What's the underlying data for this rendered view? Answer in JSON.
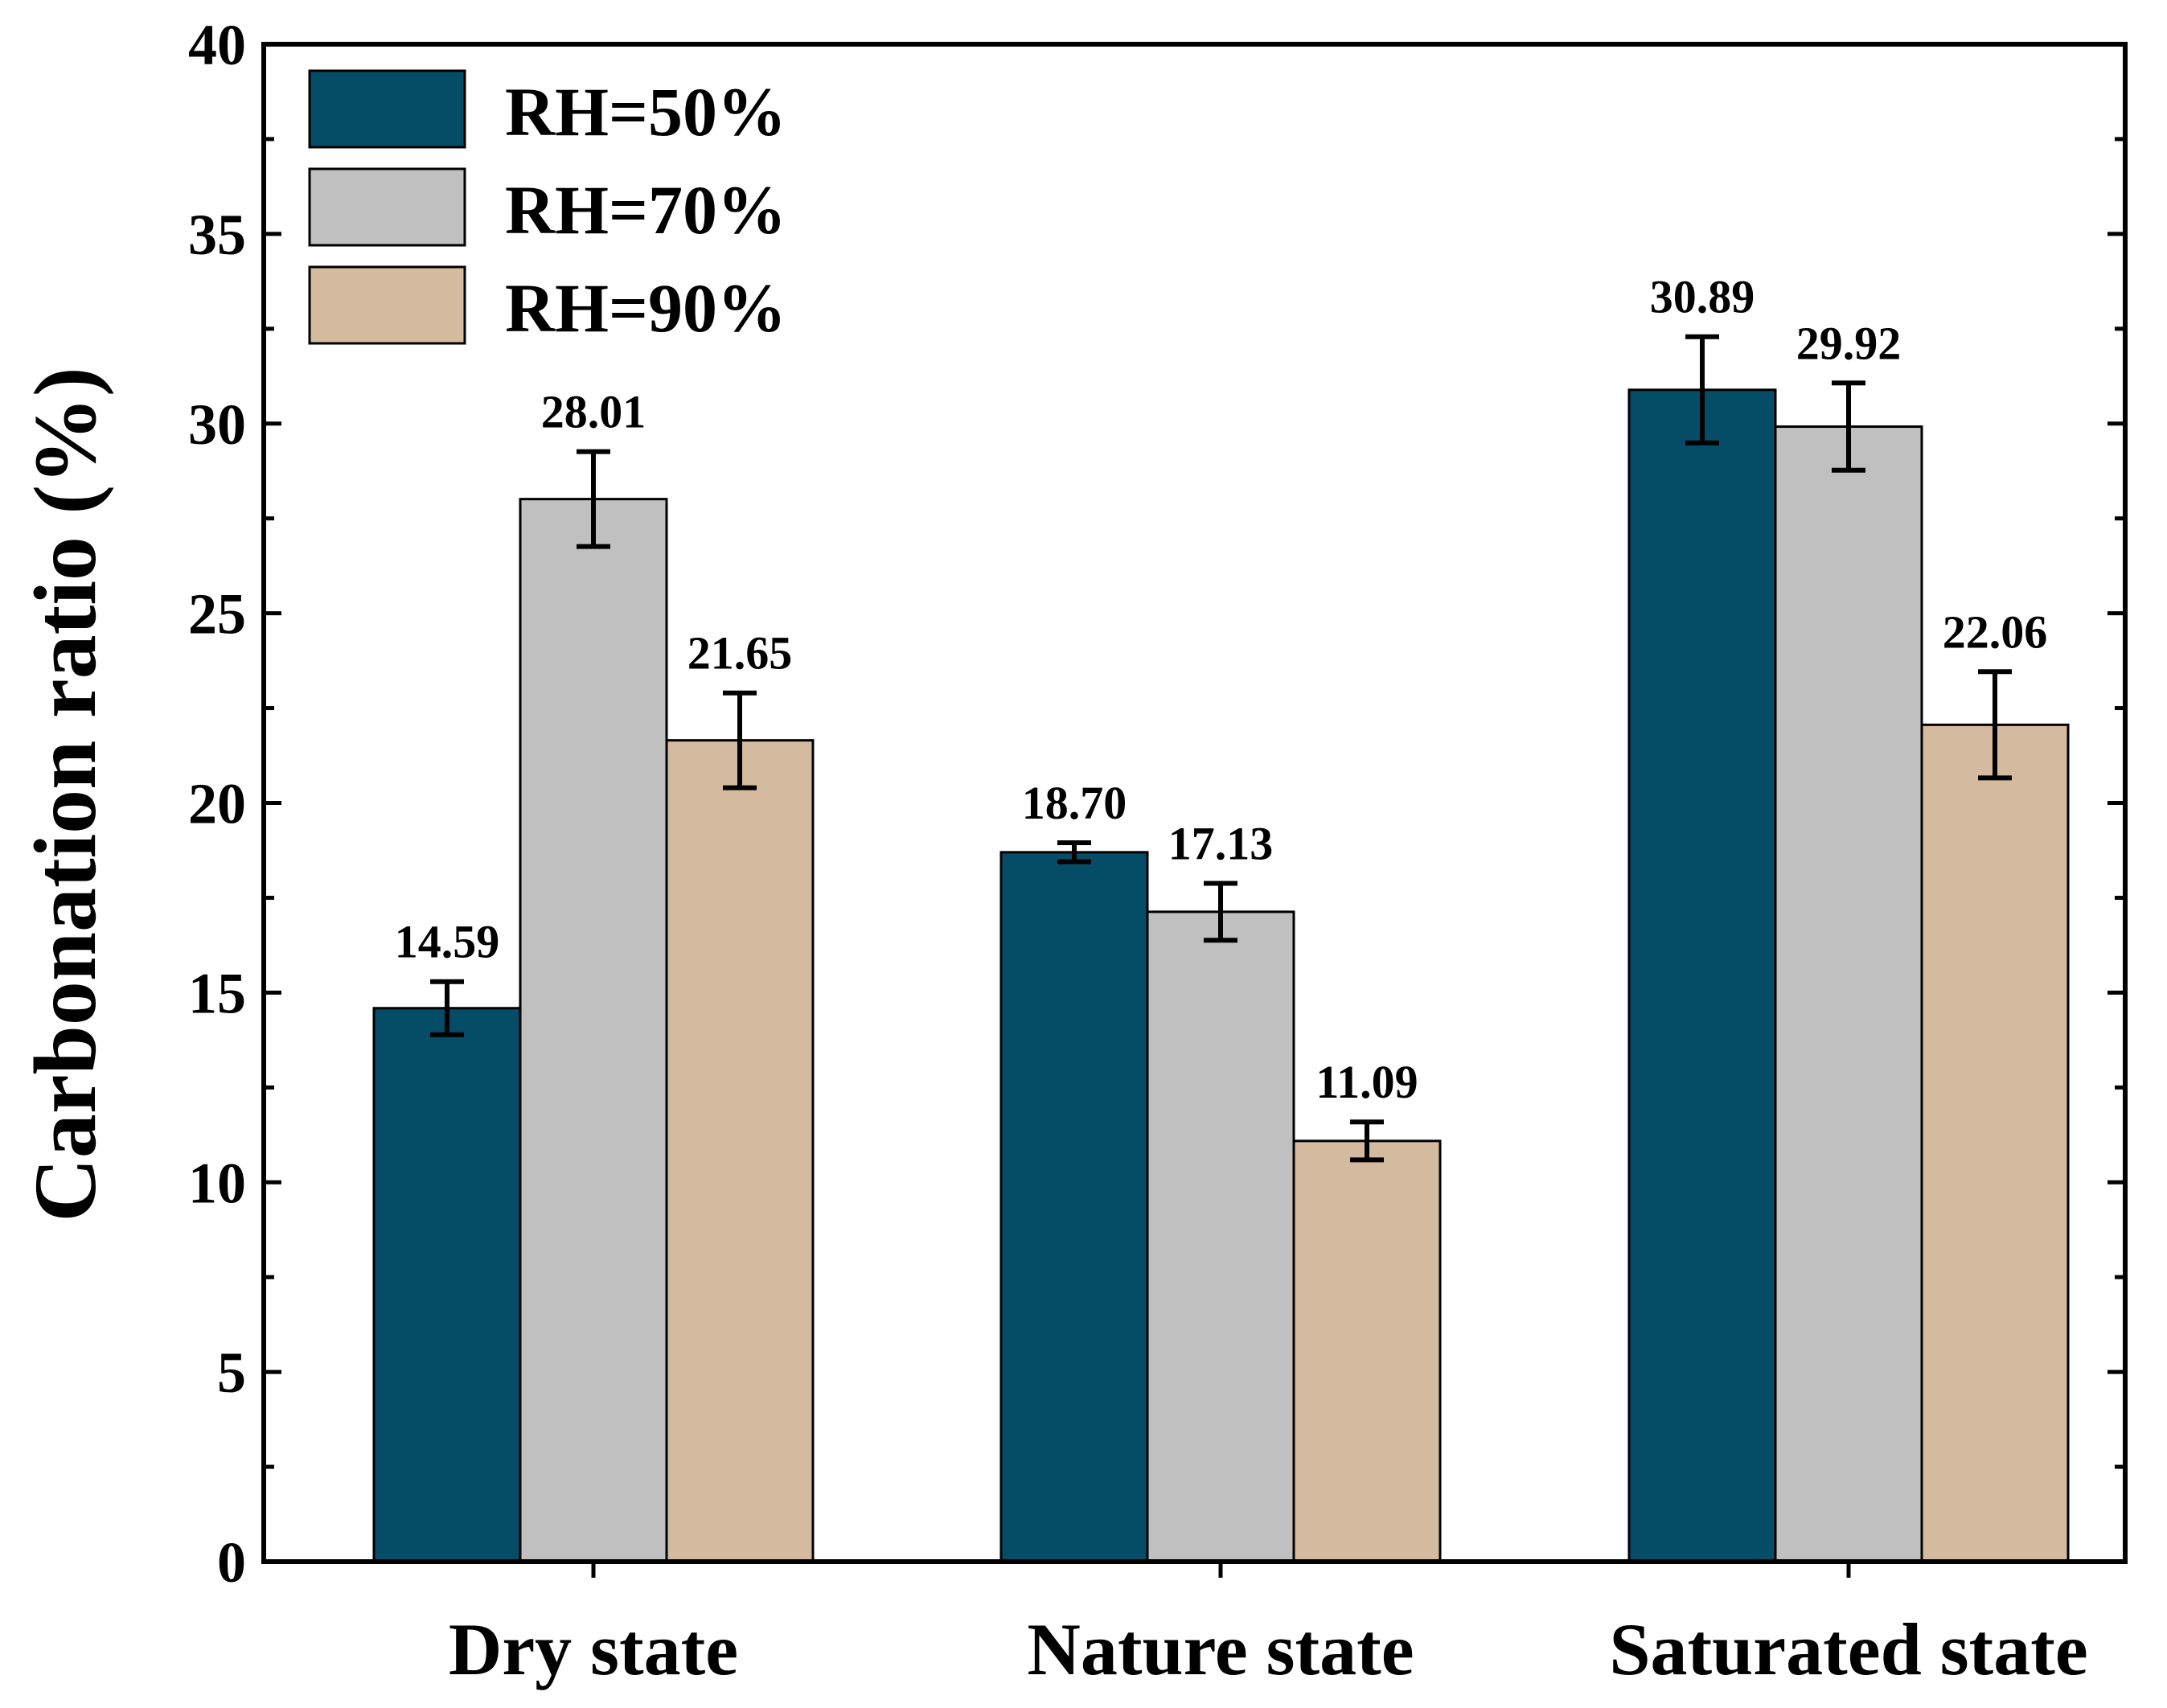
{
  "chart_data": {
    "type": "bar",
    "title": "",
    "xlabel": "",
    "ylabel": "Carbonation ratio (%)",
    "ylim": [
      0,
      40
    ],
    "yticks": [
      0,
      5,
      10,
      15,
      20,
      25,
      30,
      35,
      40
    ],
    "categories": [
      "Dry state",
      "Nature state",
      "Saturated state"
    ],
    "series": [
      {
        "name": "RH=50%",
        "color": "#054d67",
        "values": [
          14.59,
          18.7,
          30.89
        ],
        "labels": [
          "14.59",
          "18.70",
          "30.89"
        ],
        "errors": [
          0.7,
          0.25,
          1.4
        ]
      },
      {
        "name": "RH=70%",
        "color": "#c0c0c0",
        "values": [
          28.01,
          17.13,
          29.92
        ],
        "labels": [
          "28.01",
          "17.13",
          "29.92"
        ],
        "errors": [
          1.25,
          0.75,
          1.15
        ]
      },
      {
        "name": "RH=90%",
        "color": "#d4bb9f",
        "values": [
          21.65,
          11.09,
          22.06
        ],
        "labels": [
          "21.65",
          "11.09",
          "22.06"
        ],
        "errors": [
          1.25,
          0.5,
          1.4
        ]
      }
    ],
    "legend": {
      "position": "top-left"
    },
    "grid": false
  }
}
